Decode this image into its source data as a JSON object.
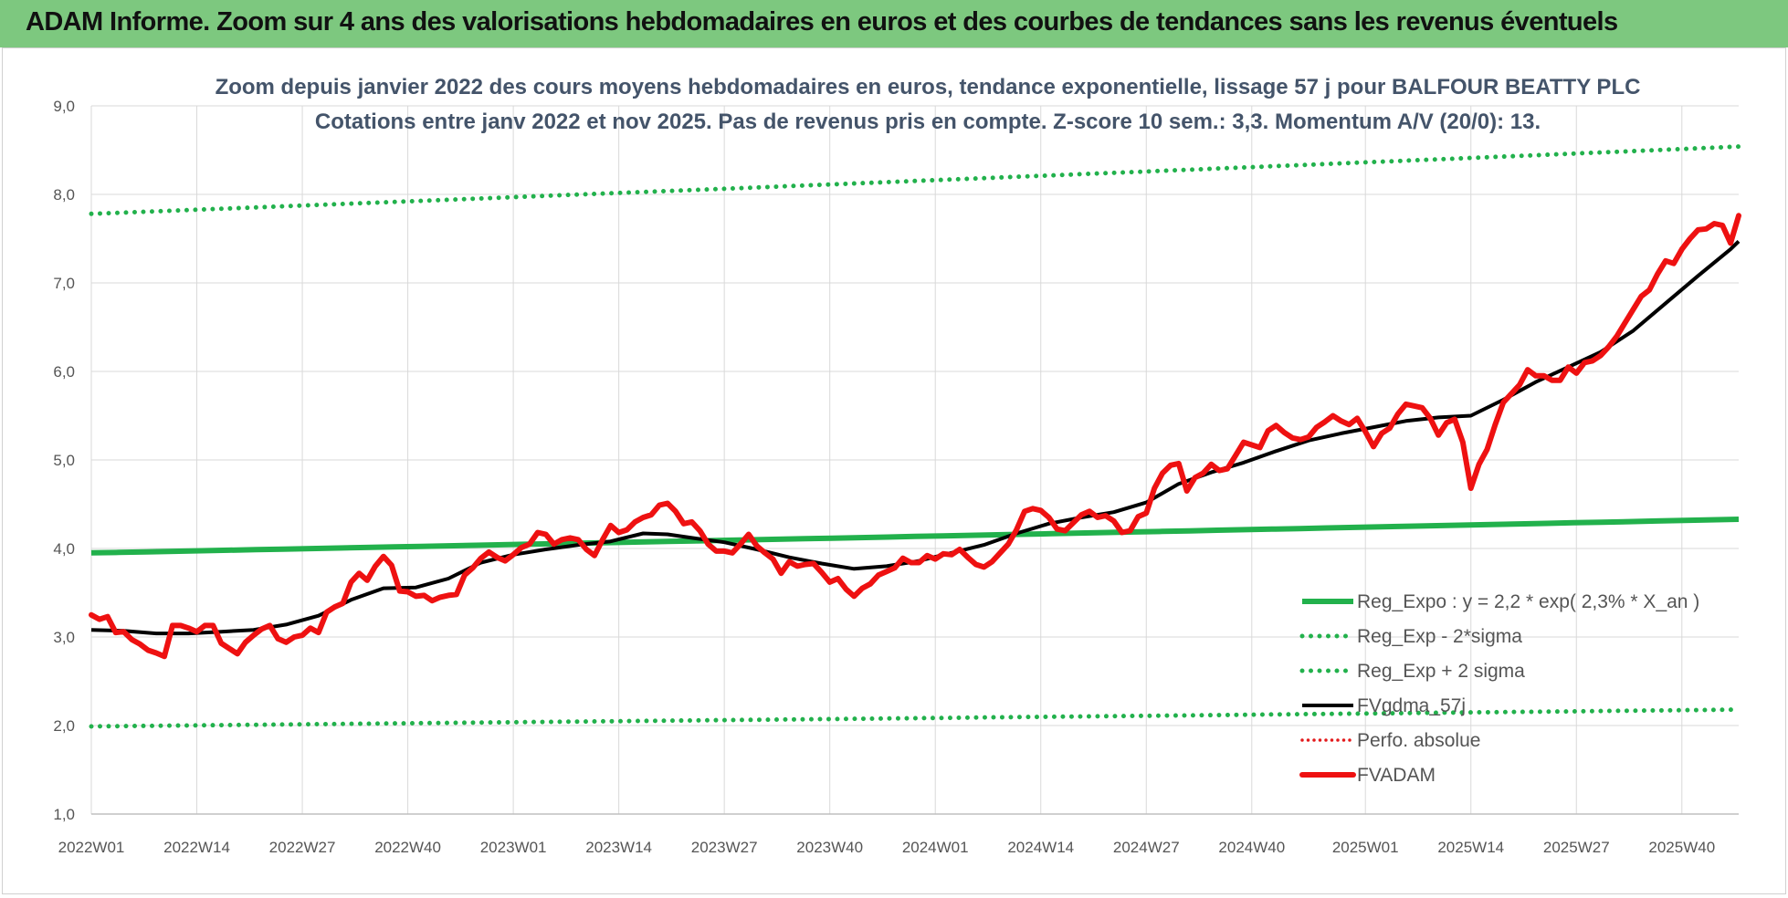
{
  "header": {
    "banner": "ADAM Informe. Zoom sur 4 ans des valorisations hebdomadaires en euros et des courbes de tendances sans les revenus éventuels"
  },
  "chart_data": {
    "type": "line",
    "title": "Zoom depuis janvier 2022 des cours moyens hebdomadaires en euros, tendance exponentielle, lissage 57 j pour BALFOUR BEATTY PLC",
    "subtitle": "Cotations entre janv 2022 et nov 2025. Pas de revenus pris en compte. Z-score 10 sem.: 3,3. Momentum A/V (20/0): 13.",
    "ylim": [
      1,
      9
    ],
    "yticks": [
      "1,0",
      "2,0",
      "3,0",
      "4,0",
      "5,0",
      "6,0",
      "7,0",
      "8,0",
      "9,0"
    ],
    "xlim": [
      0,
      203
    ],
    "xticks": [
      {
        "x": 0,
        "label": "2022W01"
      },
      {
        "x": 13,
        "label": "2022W14"
      },
      {
        "x": 26,
        "label": "2022W27"
      },
      {
        "x": 39,
        "label": "2022W40"
      },
      {
        "x": 52,
        "label": "2023W01"
      },
      {
        "x": 65,
        "label": "2023W14"
      },
      {
        "x": 78,
        "label": "2023W27"
      },
      {
        "x": 91,
        "label": "2023W40"
      },
      {
        "x": 104,
        "label": "2024W01"
      },
      {
        "x": 117,
        "label": "2024W14"
      },
      {
        "x": 130,
        "label": "2024W27"
      },
      {
        "x": 143,
        "label": "2024W40"
      },
      {
        "x": 157,
        "label": "2025W01"
      },
      {
        "x": 170,
        "label": "2025W14"
      },
      {
        "x": 183,
        "label": "2025W27"
      },
      {
        "x": 196,
        "label": "2025W40"
      }
    ],
    "colors": {
      "reg": "#22b14c",
      "sigma": "#22b14c",
      "fvgdma": "#000000",
      "perfo": "#e31a1c",
      "fvadam": "#ee1111",
      "grid": "#d9d9d9"
    },
    "series": [
      {
        "name": "Reg_Expo : y = 2,2 * exp( 2,3% *  X_an )",
        "style": "reg",
        "points": [
          [
            0,
            3.95
          ],
          [
            203,
            4.33
          ]
        ]
      },
      {
        "name": "Reg_Exp - 2*sigma",
        "style": "sigma",
        "points": [
          [
            0,
            1.99
          ],
          [
            203,
            2.18
          ]
        ]
      },
      {
        "name": "Reg_Exp + 2 sigma",
        "style": "sigma",
        "points": [
          [
            0,
            7.78
          ],
          [
            203,
            8.54
          ]
        ]
      },
      {
        "name": "FVgdma_57j",
        "style": "fvgdma",
        "points": [
          [
            0,
            3.08
          ],
          [
            4,
            3.07
          ],
          [
            8,
            3.04
          ],
          [
            12,
            3.04
          ],
          [
            16,
            3.06
          ],
          [
            20,
            3.08
          ],
          [
            24,
            3.14
          ],
          [
            28,
            3.24
          ],
          [
            32,
            3.42
          ],
          [
            36,
            3.55
          ],
          [
            40,
            3.56
          ],
          [
            44,
            3.66
          ],
          [
            48,
            3.84
          ],
          [
            52,
            3.93
          ],
          [
            56,
            3.99
          ],
          [
            60,
            4.04
          ],
          [
            64,
            4.08
          ],
          [
            68,
            4.17
          ],
          [
            71,
            4.16
          ],
          [
            74,
            4.12
          ],
          [
            78,
            4.07
          ],
          [
            82,
            3.99
          ],
          [
            86,
            3.9
          ],
          [
            90,
            3.83
          ],
          [
            94,
            3.77
          ],
          [
            98,
            3.8
          ],
          [
            102,
            3.86
          ],
          [
            106,
            3.95
          ],
          [
            110,
            4.04
          ],
          [
            114,
            4.17
          ],
          [
            118,
            4.28
          ],
          [
            122,
            4.35
          ],
          [
            126,
            4.41
          ],
          [
            130,
            4.52
          ],
          [
            134,
            4.73
          ],
          [
            138,
            4.86
          ],
          [
            142,
            4.97
          ],
          [
            146,
            5.1
          ],
          [
            150,
            5.22
          ],
          [
            154,
            5.3
          ],
          [
            158,
            5.37
          ],
          [
            162,
            5.44
          ],
          [
            166,
            5.48
          ],
          [
            170,
            5.5
          ],
          [
            174,
            5.68
          ],
          [
            178,
            5.88
          ],
          [
            182,
            6.05
          ],
          [
            186,
            6.22
          ],
          [
            190,
            6.46
          ],
          [
            194,
            6.77
          ],
          [
            198,
            7.08
          ],
          [
            202,
            7.38
          ],
          [
            203,
            7.47
          ]
        ]
      },
      {
        "name": "Perfo. absolue",
        "style": "perfo",
        "points": []
      },
      {
        "name": "FVADAM",
        "style": "fvadam",
        "points": [
          [
            0,
            3.25
          ],
          [
            1,
            3.2
          ],
          [
            2,
            3.23
          ],
          [
            3,
            3.05
          ],
          [
            4,
            3.06
          ],
          [
            5,
            2.97
          ],
          [
            6,
            2.92
          ],
          [
            7,
            2.85
          ],
          [
            8,
            2.82
          ],
          [
            9,
            2.78
          ],
          [
            10,
            3.13
          ],
          [
            11,
            3.13
          ],
          [
            12,
            3.1
          ],
          [
            13,
            3.06
          ],
          [
            14,
            3.13
          ],
          [
            15,
            3.13
          ],
          [
            16,
            2.93
          ],
          [
            17,
            2.87
          ],
          [
            18,
            2.81
          ],
          [
            19,
            2.94
          ],
          [
            20,
            3.02
          ],
          [
            21,
            3.09
          ],
          [
            22,
            3.13
          ],
          [
            23,
            2.98
          ],
          [
            24,
            2.94
          ],
          [
            25,
            3.0
          ],
          [
            26,
            3.02
          ],
          [
            27,
            3.1
          ],
          [
            28,
            3.05
          ],
          [
            29,
            3.28
          ],
          [
            30,
            3.34
          ],
          [
            31,
            3.38
          ],
          [
            32,
            3.62
          ],
          [
            33,
            3.72
          ],
          [
            34,
            3.64
          ],
          [
            35,
            3.8
          ],
          [
            36,
            3.91
          ],
          [
            37,
            3.81
          ],
          [
            38,
            3.52
          ],
          [
            39,
            3.51
          ],
          [
            40,
            3.46
          ],
          [
            41,
            3.47
          ],
          [
            42,
            3.41
          ],
          [
            43,
            3.45
          ],
          [
            44,
            3.47
          ],
          [
            45,
            3.48
          ],
          [
            46,
            3.7
          ],
          [
            47,
            3.78
          ],
          [
            48,
            3.89
          ],
          [
            49,
            3.96
          ],
          [
            50,
            3.9
          ],
          [
            51,
            3.86
          ],
          [
            52,
            3.93
          ],
          [
            53,
            4.01
          ],
          [
            54,
            4.05
          ],
          [
            55,
            4.18
          ],
          [
            56,
            4.16
          ],
          [
            57,
            4.05
          ],
          [
            58,
            4.1
          ],
          [
            59,
            4.12
          ],
          [
            60,
            4.1
          ],
          [
            61,
            3.99
          ],
          [
            62,
            3.92
          ],
          [
            63,
            4.1
          ],
          [
            64,
            4.26
          ],
          [
            65,
            4.18
          ],
          [
            66,
            4.21
          ],
          [
            67,
            4.3
          ],
          [
            68,
            4.35
          ],
          [
            69,
            4.38
          ],
          [
            70,
            4.49
          ],
          [
            71,
            4.51
          ],
          [
            72,
            4.42
          ],
          [
            73,
            4.28
          ],
          [
            74,
            4.3
          ],
          [
            75,
            4.2
          ],
          [
            76,
            4.05
          ],
          [
            77,
            3.97
          ],
          [
            78,
            3.97
          ],
          [
            79,
            3.95
          ],
          [
            80,
            4.05
          ],
          [
            81,
            4.16
          ],
          [
            82,
            4.03
          ],
          [
            83,
            3.95
          ],
          [
            84,
            3.88
          ],
          [
            85,
            3.72
          ],
          [
            86,
            3.85
          ],
          [
            87,
            3.8
          ],
          [
            88,
            3.82
          ],
          [
            89,
            3.83
          ],
          [
            90,
            3.73
          ],
          [
            91,
            3.62
          ],
          [
            92,
            3.66
          ],
          [
            93,
            3.54
          ],
          [
            94,
            3.46
          ],
          [
            95,
            3.55
          ],
          [
            96,
            3.6
          ],
          [
            97,
            3.7
          ],
          [
            98,
            3.74
          ],
          [
            99,
            3.78
          ],
          [
            100,
            3.89
          ],
          [
            101,
            3.84
          ],
          [
            102,
            3.84
          ],
          [
            103,
            3.92
          ],
          [
            104,
            3.88
          ],
          [
            105,
            3.94
          ],
          [
            106,
            3.93
          ],
          [
            107,
            3.99
          ],
          [
            108,
            3.9
          ],
          [
            109,
            3.82
          ],
          [
            110,
            3.79
          ],
          [
            111,
            3.85
          ],
          [
            112,
            3.95
          ],
          [
            113,
            4.05
          ],
          [
            114,
            4.21
          ],
          [
            115,
            4.42
          ],
          [
            116,
            4.45
          ],
          [
            117,
            4.43
          ],
          [
            118,
            4.35
          ],
          [
            119,
            4.22
          ],
          [
            120,
            4.2
          ],
          [
            121,
            4.29
          ],
          [
            122,
            4.38
          ],
          [
            123,
            4.42
          ],
          [
            124,
            4.35
          ],
          [
            125,
            4.37
          ],
          [
            126,
            4.31
          ],
          [
            127,
            4.18
          ],
          [
            128,
            4.2
          ],
          [
            129,
            4.36
          ],
          [
            130,
            4.4
          ],
          [
            131,
            4.68
          ],
          [
            132,
            4.85
          ],
          [
            133,
            4.94
          ],
          [
            134,
            4.96
          ],
          [
            135,
            4.65
          ],
          [
            136,
            4.8
          ],
          [
            137,
            4.85
          ],
          [
            138,
            4.95
          ],
          [
            139,
            4.88
          ],
          [
            140,
            4.9
          ],
          [
            141,
            5.05
          ],
          [
            142,
            5.2
          ],
          [
            143,
            5.17
          ],
          [
            144,
            5.14
          ],
          [
            145,
            5.33
          ],
          [
            146,
            5.39
          ],
          [
            147,
            5.31
          ],
          [
            148,
            5.25
          ],
          [
            149,
            5.23
          ],
          [
            150,
            5.26
          ],
          [
            151,
            5.37
          ],
          [
            152,
            5.43
          ],
          [
            153,
            5.5
          ],
          [
            154,
            5.44
          ],
          [
            155,
            5.4
          ],
          [
            156,
            5.47
          ],
          [
            157,
            5.32
          ],
          [
            158,
            5.15
          ],
          [
            159,
            5.3
          ],
          [
            160,
            5.36
          ],
          [
            161,
            5.52
          ],
          [
            162,
            5.63
          ],
          [
            163,
            5.61
          ],
          [
            164,
            5.59
          ],
          [
            165,
            5.47
          ],
          [
            166,
            5.28
          ],
          [
            167,
            5.42
          ],
          [
            168,
            5.46
          ],
          [
            169,
            5.2
          ],
          [
            170,
            4.68
          ],
          [
            171,
            4.95
          ],
          [
            172,
            5.12
          ],
          [
            173,
            5.4
          ],
          [
            174,
            5.65
          ],
          [
            175,
            5.75
          ],
          [
            176,
            5.85
          ],
          [
            177,
            6.02
          ],
          [
            178,
            5.95
          ],
          [
            179,
            5.95
          ],
          [
            180,
            5.9
          ],
          [
            181,
            5.9
          ],
          [
            182,
            6.05
          ],
          [
            183,
            5.98
          ],
          [
            184,
            6.1
          ],
          [
            185,
            6.12
          ],
          [
            186,
            6.18
          ],
          [
            187,
            6.28
          ],
          [
            188,
            6.4
          ],
          [
            189,
            6.55
          ],
          [
            190,
            6.7
          ],
          [
            191,
            6.85
          ],
          [
            192,
            6.92
          ],
          [
            193,
            7.1
          ],
          [
            194,
            7.25
          ],
          [
            195,
            7.22
          ],
          [
            196,
            7.38
          ],
          [
            197,
            7.5
          ],
          [
            198,
            7.6
          ],
          [
            199,
            7.61
          ],
          [
            200,
            7.67
          ],
          [
            201,
            7.65
          ],
          [
            202,
            7.45
          ],
          [
            203,
            7.76
          ]
        ]
      }
    ]
  }
}
